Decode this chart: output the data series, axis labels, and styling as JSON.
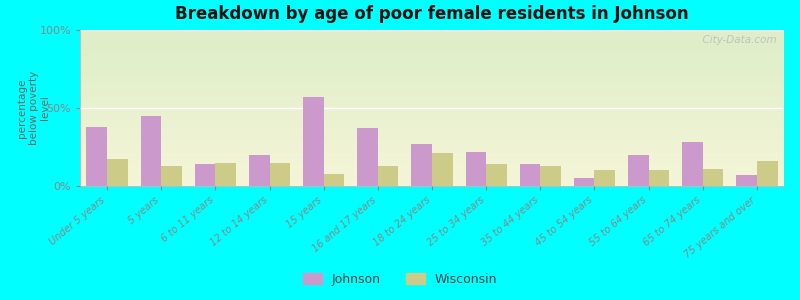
{
  "title": "Breakdown by age of poor female residents in Johnson",
  "categories": [
    "Under 5 years",
    "5 years",
    "6 to 11 years",
    "12 to 14 years",
    "15 years",
    "16 and 17 years",
    "18 to 24 years",
    "25 to 34 years",
    "35 to 44 years",
    "45 to 54 years",
    "55 to 64 years",
    "65 to 74 years",
    "75 years and over"
  ],
  "johnson_values": [
    38,
    45,
    14,
    20,
    57,
    37,
    27,
    22,
    14,
    5,
    20,
    28,
    7
  ],
  "wisconsin_values": [
    17,
    13,
    15,
    15,
    8,
    13,
    21,
    14,
    13,
    10,
    10,
    11,
    16
  ],
  "johnson_color": "#cc99cc",
  "wisconsin_color": "#cccc88",
  "ylabel": "percentage\nbelow poverty\nlevel",
  "yticks": [
    0,
    50,
    100
  ],
  "ytick_labels": [
    "0%",
    "50%",
    "100%"
  ],
  "grad_top": "#ddeec8",
  "grad_bottom": "#f5f5d8",
  "outer_bg": "#00ffff",
  "watermark": "  City-Data.com",
  "legend_johnson": "Johnson",
  "legend_wisconsin": "Wisconsin",
  "bar_width": 0.38,
  "ylim": [
    0,
    100
  ]
}
